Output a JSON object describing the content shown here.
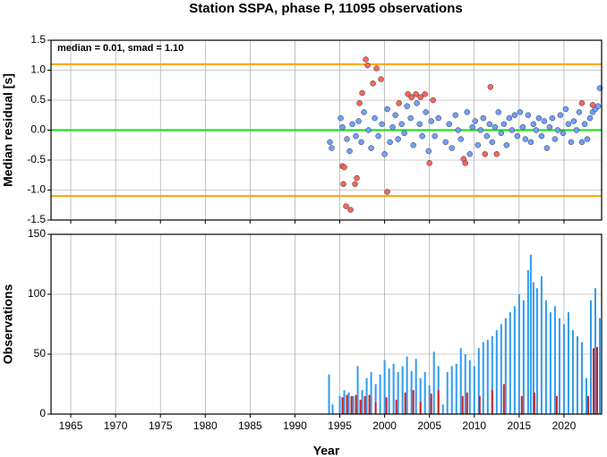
{
  "chart_data": [
    {
      "type": "scatter",
      "title": "Station SSPA, phase P, 11095 observations",
      "annotation": "median = 0.01, smad = 1.10",
      "ylabel": "Median residual [s]",
      "xlim": [
        1962.8,
        2024.2
      ],
      "xticks": [
        1965,
        1970,
        1975,
        1980,
        1985,
        1990,
        1995,
        2000,
        2005,
        2010,
        2015,
        2020
      ],
      "ylim": [
        -1.5,
        1.5
      ],
      "yticks": [
        1.5,
        {
          "value": 1.0,
          "label": "1.0"
        },
        0.5,
        {
          "value": 0.0,
          "label": "0.0"
        },
        -0.5,
        {
          "value": -1.0,
          "label": "-1.0"
        },
        -1.5
      ],
      "grid": true,
      "hlines": [
        {
          "value": 1.1,
          "color": "#ffa500"
        },
        {
          "value": -1.1,
          "color": "#ffa500"
        },
        {
          "value": 0.0,
          "color": "#22e022"
        }
      ],
      "series": [
        {
          "color": "#6fa0ff",
          "x": [
            1993.9,
            1994.1,
            1995.1,
            1995.3,
            1995.8,
            1996.1,
            1996.4,
            1996.8,
            1997.1,
            1997.4,
            1997.7,
            1998.2,
            1998.5,
            1998.9,
            1999.3,
            1999.7,
            2000.0,
            2000.3,
            2000.6,
            2000.9,
            2001.2,
            2001.5,
            2001.9,
            2002.2,
            2002.5,
            2002.9,
            2003.2,
            2003.6,
            2003.9,
            2004.2,
            2004.6,
            2004.9,
            2005.2,
            2005.6,
            2006.0,
            2006.8,
            2007.2,
            2007.5,
            2007.9,
            2008.2,
            2008.5,
            2009.2,
            2009.5,
            2009.8,
            2010.1,
            2010.4,
            2010.7,
            2011.0,
            2011.4,
            2011.7,
            2012.0,
            2012.3,
            2012.7,
            2013.0,
            2013.3,
            2013.6,
            2013.9,
            2014.2,
            2014.5,
            2014.8,
            2015.1,
            2015.4,
            2015.7,
            2016.0,
            2016.3,
            2016.6,
            2016.9,
            2017.2,
            2017.5,
            2017.8,
            2018.1,
            2018.4,
            2018.7,
            2019.0,
            2019.3,
            2019.6,
            2019.9,
            2020.2,
            2020.5,
            2020.8,
            2021.1,
            2021.4,
            2021.7,
            2022.0,
            2022.3,
            2022.6,
            2022.9,
            2023.2,
            2023.5,
            2023.8,
            2024.0
          ],
          "values": [
            -0.2,
            -0.3,
            0.2,
            0.05,
            -0.15,
            -0.35,
            0.1,
            -0.1,
            0.15,
            -0.2,
            0.3,
            0.0,
            -0.3,
            0.2,
            -0.1,
            0.1,
            -0.4,
            0.35,
            -0.2,
            0.05,
            0.25,
            -0.15,
            0.1,
            -0.05,
            0.4,
            0.2,
            -0.25,
            0.45,
            0.1,
            -0.1,
            0.3,
            -0.35,
            0.15,
            -0.1,
            0.2,
            -0.2,
            0.1,
            -0.3,
            0.25,
            0.0,
            -0.15,
            0.3,
            -0.4,
            0.05,
            0.15,
            -0.25,
            0.0,
            0.2,
            -0.1,
            0.1,
            -0.2,
            0.05,
            0.3,
            -0.05,
            0.1,
            -0.25,
            0.2,
            0.0,
            0.25,
            -0.1,
            0.3,
            0.05,
            -0.15,
            0.25,
            -0.2,
            0.1,
            0.0,
            0.2,
            -0.1,
            0.15,
            -0.3,
            0.05,
            0.2,
            -0.15,
            0.0,
            0.25,
            -0.05,
            0.35,
            0.1,
            -0.2,
            0.15,
            0.0,
            0.3,
            -0.2,
            0.1,
            -0.15,
            0.2,
            0.3,
            0.35,
            0.4,
            0.7
          ]
        },
        {
          "color": "#f8655a",
          "x": [
            1995.3,
            1995.5,
            1995.4,
            1995.7,
            1996.2,
            1996.7,
            1996.9,
            1997.2,
            1997.5,
            1997.9,
            1998.1,
            1998.7,
            1999.1,
            1999.6,
            2000.3,
            2001.6,
            2002.6,
            2003.0,
            2003.5,
            2004.0,
            2004.5,
            2005.0,
            2005.4,
            2008.8,
            2009.0,
            2011.2,
            2011.8,
            2012.5,
            2022.0,
            2023.2
          ],
          "values": [
            -0.6,
            -0.62,
            -0.9,
            -1.27,
            -1.33,
            -0.9,
            -0.8,
            0.45,
            0.62,
            1.18,
            1.08,
            0.78,
            1.03,
            0.85,
            -1.03,
            0.45,
            0.6,
            0.55,
            0.6,
            0.55,
            0.6,
            -0.55,
            0.5,
            -0.48,
            -0.55,
            -0.4,
            0.72,
            -0.4,
            0.45,
            0.42
          ]
        }
      ]
    },
    {
      "type": "bar",
      "xlabel": "Year",
      "ylabel": "Observations",
      "xlim": [
        1962.8,
        2024.2
      ],
      "xticks": [
        1965,
        1970,
        1975,
        1980,
        1985,
        1990,
        1995,
        2000,
        2005,
        2010,
        2015,
        2020
      ],
      "ylim": [
        0,
        150
      ],
      "yticks": [
        0,
        50,
        100,
        150
      ],
      "grid": true,
      "series": [
        {
          "color": "#2f9bf0",
          "x": [
            1993.8,
            1994.2,
            1995.0,
            1995.5,
            1996.0,
            1996.5,
            1997.0,
            1997.5,
            1998.0,
            1998.5,
            1999.0,
            1999.5,
            2000.0,
            2000.5,
            2001.0,
            2001.5,
            2002.0,
            2002.5,
            2003.0,
            2003.5,
            2004.0,
            2004.5,
            2005.0,
            2005.5,
            2006.0,
            2006.5,
            2007.0,
            2007.5,
            2008.0,
            2008.5,
            2009.0,
            2009.5,
            2010.0,
            2010.5,
            2011.0,
            2011.5,
            2012.0,
            2012.5,
            2013.0,
            2013.5,
            2014.0,
            2014.5,
            2015.0,
            2015.5,
            2016.0,
            2016.3,
            2016.6,
            2017.0,
            2017.5,
            2018.0,
            2018.5,
            2019.0,
            2019.5,
            2020.0,
            2020.5,
            2021.0,
            2021.5,
            2022.0,
            2022.5,
            2023.0,
            2023.5,
            2024.0
          ],
          "values": [
            33,
            8,
            15,
            20,
            18,
            15,
            40,
            20,
            30,
            35,
            25,
            33,
            45,
            38,
            42,
            35,
            40,
            48,
            36,
            46,
            30,
            35,
            24,
            52,
            40,
            8,
            35,
            40,
            42,
            55,
            50,
            45,
            40,
            55,
            60,
            62,
            65,
            70,
            75,
            80,
            85,
            90,
            100,
            95,
            120,
            133,
            110,
            105,
            115,
            95,
            85,
            90,
            80,
            75,
            85,
            70,
            65,
            60,
            30,
            95,
            105,
            80
          ]
        },
        {
          "color": "#d02020",
          "x": [
            1995.3,
            1995.8,
            1996.3,
            1996.8,
            1997.3,
            1997.8,
            1998.3,
            1999.0,
            2000.2,
            2001.3,
            2002.3,
            2003.2,
            2004.0,
            2005.2,
            2006.0,
            2008.7,
            2009.2,
            2010.6,
            2012.0,
            2013.3,
            2015.3,
            2016.7,
            2019.2,
            2022.7,
            2023.3,
            2023.7
          ],
          "values": [
            14,
            16,
            15,
            16,
            12,
            15,
            16,
            10,
            14,
            12,
            18,
            20,
            10,
            17,
            20,
            15,
            18,
            15,
            20,
            25,
            15,
            18,
            15,
            15,
            55,
            56
          ]
        }
      ]
    }
  ]
}
